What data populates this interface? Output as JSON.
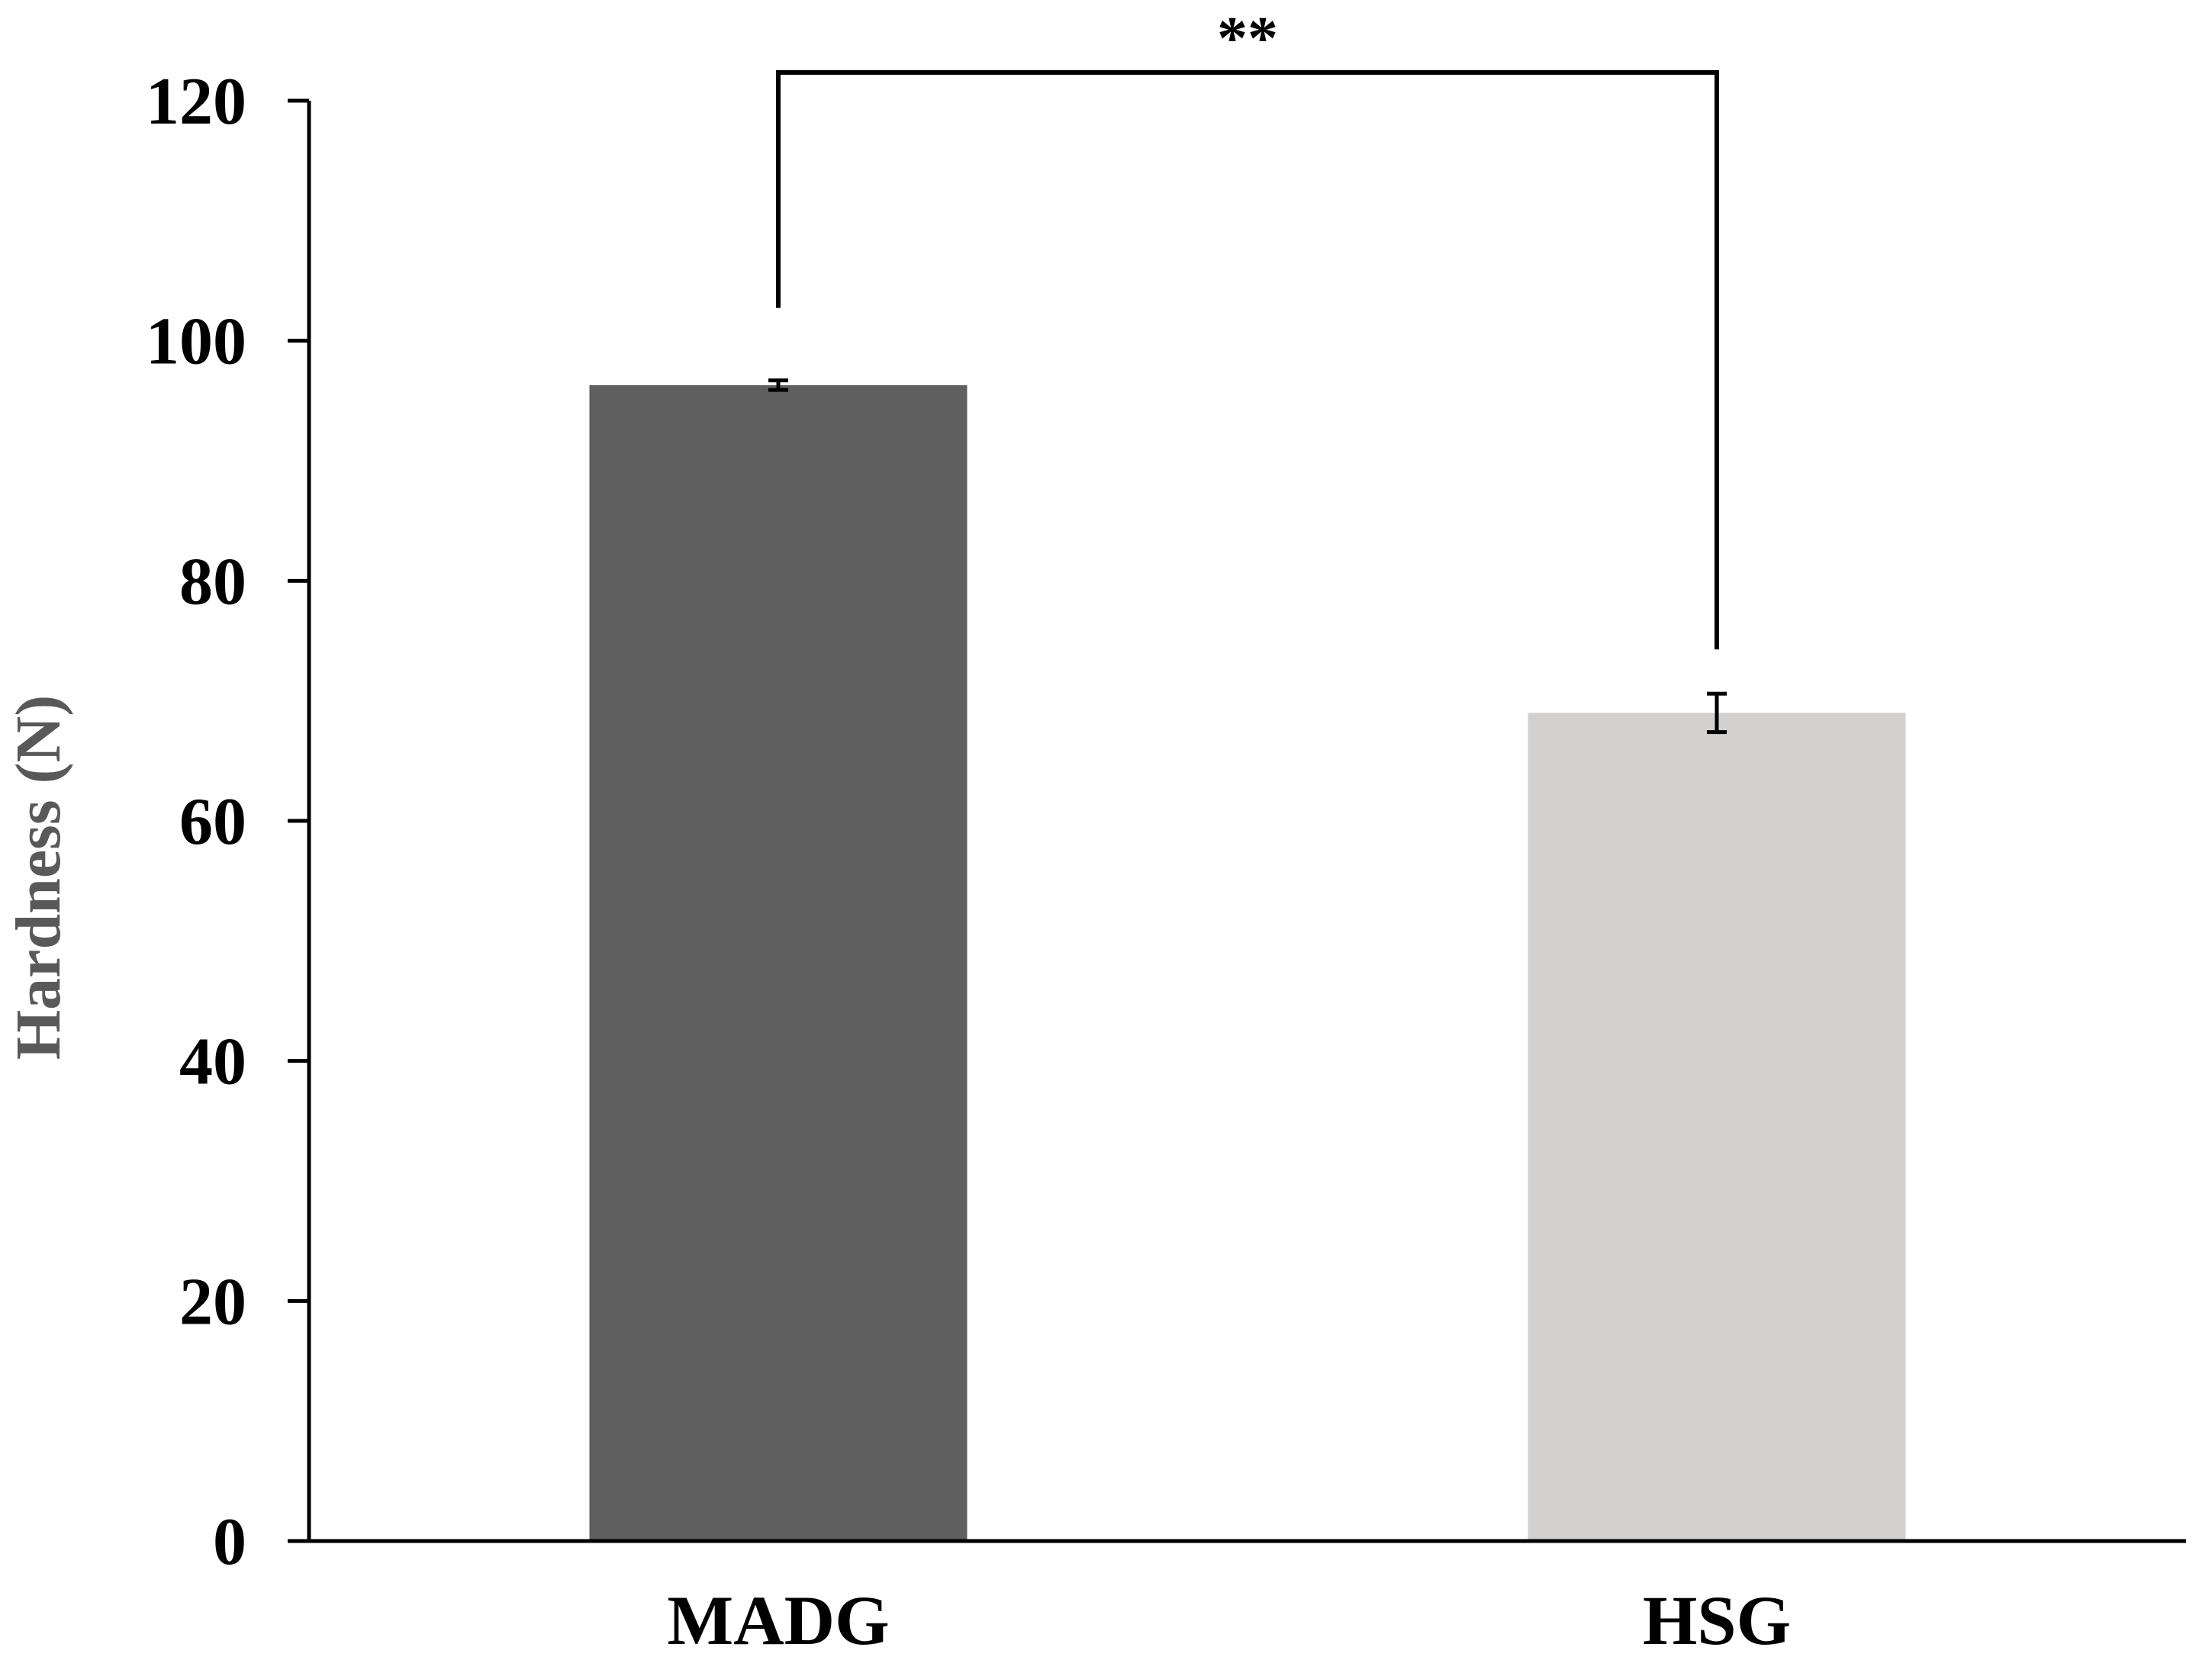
{
  "chart_data": {
    "type": "bar",
    "categories": [
      "MADG",
      "HSG"
    ],
    "values": [
      96.3,
      69.0
    ],
    "errors": [
      0.4,
      1.6
    ],
    "colors": [
      "#5f5f5f",
      "#d3d0d0"
    ],
    "ylabel": "Hardness (N)",
    "xlabel": "",
    "title": "",
    "ylim": [
      0,
      120
    ],
    "yticks": [
      0,
      20,
      40,
      60,
      80,
      100,
      120
    ],
    "grid": false,
    "significance": {
      "label": "**",
      "between": [
        "MADG",
        "HSG"
      ]
    }
  }
}
